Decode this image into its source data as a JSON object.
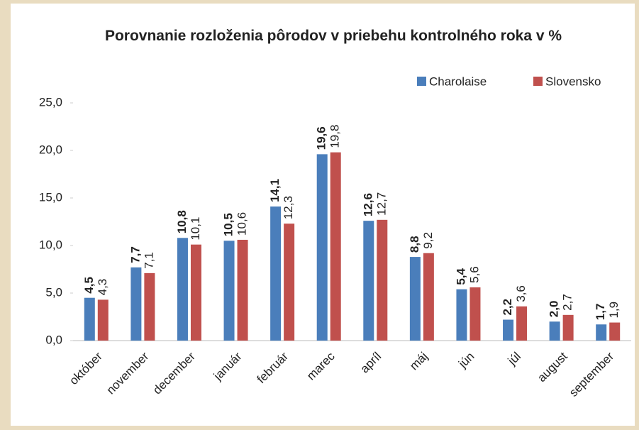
{
  "chart_data": {
    "type": "bar",
    "title": "Porovnanie rozloženia pôrodov v priebehu kontrolného roka v %",
    "categories": [
      "október",
      "november",
      "december",
      "január",
      "február",
      "marec",
      "apríl",
      "máj",
      "jún",
      "júl",
      "august",
      "september"
    ],
    "series": [
      {
        "name": "Charolaise",
        "color": "#4a7ebb",
        "values": [
          4.5,
          7.7,
          10.8,
          10.5,
          14.1,
          19.6,
          12.6,
          8.8,
          5.4,
          2.2,
          2.0,
          1.7
        ],
        "value_labels": [
          "4,5",
          "7,7",
          "10,8",
          "10,5",
          "14,1",
          "19,6",
          "12,6",
          "8,8",
          "5,4",
          "2,2",
          "2,0",
          "1,7"
        ]
      },
      {
        "name": "Slovensko",
        "color": "#c0504d",
        "values": [
          4.3,
          7.1,
          10.1,
          10.6,
          12.3,
          19.8,
          12.7,
          9.2,
          5.6,
          3.6,
          2.7,
          1.9
        ],
        "value_labels": [
          "4,3",
          "7,1",
          "10,1",
          "10,6",
          "12,3",
          "19,8",
          "12,7",
          "9,2",
          "5,6",
          "3,6",
          "2,7",
          "1,9"
        ]
      }
    ],
    "ylim": [
      0,
      25
    ],
    "yticks": [
      {
        "value": 0,
        "label": "0,0"
      },
      {
        "value": 5,
        "label": "5,0"
      },
      {
        "value": 10,
        "label": "10,0"
      },
      {
        "value": 15,
        "label": "15,0"
      },
      {
        "value": 20,
        "label": "20,0"
      },
      {
        "value": 25,
        "label": "25,0"
      }
    ],
    "legend": "top-right"
  }
}
